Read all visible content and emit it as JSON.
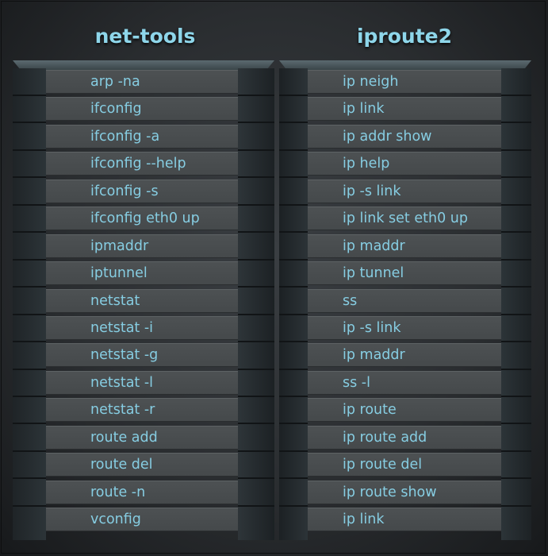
{
  "headers": {
    "left": "net-tools",
    "right": "iproute2"
  },
  "rows": [
    {
      "net_tools": "arp -na",
      "iproute2": "ip neigh"
    },
    {
      "net_tools": "ifconfig",
      "iproute2": "ip link"
    },
    {
      "net_tools": "ifconfig -a",
      "iproute2": "ip addr show"
    },
    {
      "net_tools": "ifconfig --help",
      "iproute2": "ip help"
    },
    {
      "net_tools": "ifconfig -s",
      "iproute2": "ip -s link"
    },
    {
      "net_tools": "ifconfig eth0 up",
      "iproute2": "ip link set eth0 up"
    },
    {
      "net_tools": "ipmaddr",
      "iproute2": "ip maddr"
    },
    {
      "net_tools": "iptunnel",
      "iproute2": "ip tunnel"
    },
    {
      "net_tools": "netstat",
      "iproute2": "ss"
    },
    {
      "net_tools": "netstat -i",
      "iproute2": "ip -s link"
    },
    {
      "net_tools": "netstat  -g",
      "iproute2": "ip maddr"
    },
    {
      "net_tools": "netstat -l",
      "iproute2": "ss -l"
    },
    {
      "net_tools": "netstat -r",
      "iproute2": "ip route"
    },
    {
      "net_tools": "route add",
      "iproute2": "ip route add"
    },
    {
      "net_tools": "route del",
      "iproute2": "ip route del"
    },
    {
      "net_tools": "route -n",
      "iproute2": "ip route show"
    },
    {
      "net_tools": "vconfig",
      "iproute2": "ip link"
    }
  ],
  "colors": {
    "text": "#86cde2",
    "title": "#8ed6ea",
    "row": "#4a4e50",
    "background": "#2a2d30"
  }
}
